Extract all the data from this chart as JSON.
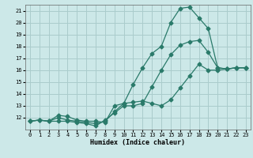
{
  "xlabel": "Humidex (Indice chaleur)",
  "xlim": [
    -0.5,
    23.5
  ],
  "ylim": [
    11.0,
    21.5
  ],
  "yticks": [
    12,
    13,
    14,
    15,
    16,
    17,
    18,
    19,
    20,
    21
  ],
  "xticks": [
    0,
    1,
    2,
    3,
    4,
    5,
    6,
    7,
    8,
    9,
    10,
    11,
    12,
    13,
    14,
    15,
    16,
    17,
    18,
    19,
    20,
    21,
    22,
    23
  ],
  "bg_color": "#cce8e8",
  "grid_color": "#aacccc",
  "line_color": "#2a7a6a",
  "line1_x": [
    0,
    1,
    2,
    3,
    4,
    5,
    6,
    7,
    8,
    9,
    10,
    11,
    12,
    13,
    14,
    15,
    16,
    17,
    18,
    19,
    20,
    21,
    22,
    23
  ],
  "line1_y": [
    11.7,
    11.8,
    11.7,
    11.7,
    11.7,
    11.6,
    11.5,
    11.3,
    11.8,
    12.4,
    13.0,
    13.0,
    13.2,
    14.6,
    16.0,
    17.3,
    18.1,
    18.4,
    18.5,
    17.5,
    16.2,
    16.1,
    16.2,
    16.2
  ],
  "line2_x": [
    0,
    1,
    2,
    3,
    4,
    5,
    6,
    7,
    8,
    9,
    10,
    11,
    12,
    13,
    14,
    15,
    16,
    17,
    18,
    19,
    20,
    21,
    22,
    23
  ],
  "line2_y": [
    11.7,
    11.8,
    11.7,
    12.2,
    12.1,
    11.8,
    11.7,
    11.7,
    11.6,
    13.0,
    13.2,
    14.8,
    16.2,
    17.4,
    18.0,
    20.0,
    21.2,
    21.3,
    20.4,
    19.5,
    16.2,
    16.1,
    16.2,
    16.2
  ],
  "line3_x": [
    0,
    1,
    2,
    3,
    4,
    5,
    6,
    7,
    8,
    9,
    10,
    11,
    12,
    13,
    14,
    15,
    16,
    17,
    18,
    19,
    20,
    21,
    22,
    23
  ],
  "line3_y": [
    11.7,
    11.8,
    11.7,
    12.0,
    11.8,
    11.7,
    11.6,
    11.5,
    11.7,
    12.5,
    13.2,
    13.3,
    13.4,
    13.2,
    13.0,
    13.5,
    14.5,
    15.5,
    16.5,
    16.0,
    16.0,
    16.1,
    16.2,
    16.2
  ]
}
